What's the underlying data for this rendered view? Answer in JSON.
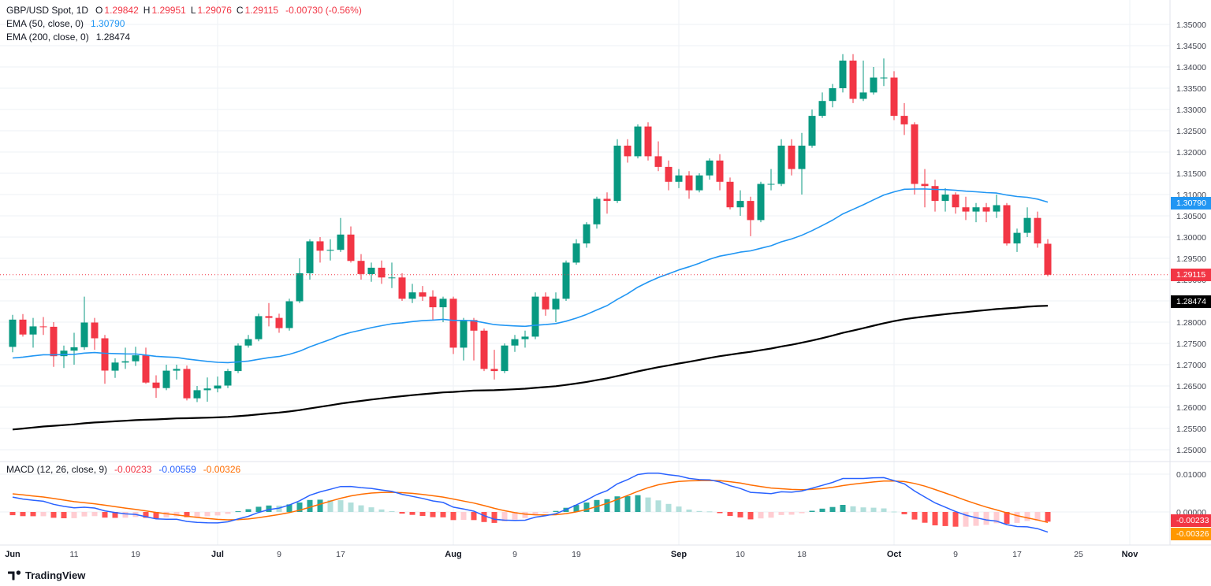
{
  "colors": {
    "up": "#089981",
    "down": "#f23645",
    "ema50": "#2196f3",
    "ema200": "#000000",
    "macd_line": "#2962ff",
    "signal_line": "#ff6d00",
    "hist_grow_above": "#26a69a",
    "hist_fall_above": "#b2dfdb",
    "hist_fall_below": "#ff5252",
    "hist_grow_below": "#ffcdd2",
    "grid": "#eef1f6",
    "divider": "#e0e3eb",
    "last_price": "#f23645",
    "hist_badge": "#f23645",
    "signal_badge": "#ff9800",
    "axis_text": "#434651"
  },
  "legend": {
    "symbol": "GBP/USD Spot, 1D",
    "open_label": "O",
    "open": "1.29842",
    "high_label": "H",
    "high": "1.29951",
    "low_label": "L",
    "low": "1.29076",
    "close_label": "C",
    "close": "1.29115",
    "change": "-0.00730 (-0.56%)",
    "ema50_label": "EMA (50, close, 0)",
    "ema50_value": "1.30790",
    "ema200_label": "EMA (200, close, 0)",
    "ema200_value": "1.28474",
    "macd_label": "MACD (12, 26, close, 9)",
    "macd_hist_value": "-0.00233",
    "macd_value": "-0.00559",
    "macd_signal_value": "-0.00326"
  },
  "badges": {
    "ema50": "1.30790",
    "ema200": "1.28474",
    "last": "1.29115",
    "macd_hist": "-0.00233",
    "macd_signal": "-0.00326"
  },
  "axes": {
    "price_ticks": [
      "1.35000",
      "1.34500",
      "1.34000",
      "1.33500",
      "1.33000",
      "1.32500",
      "1.32000",
      "1.31500",
      "1.31000",
      "1.30500",
      "1.30000",
      "1.29500",
      "1.29000",
      "1.28500",
      "1.28000",
      "1.27500",
      "1.27000",
      "1.26500",
      "1.26000",
      "1.25500",
      "1.25000"
    ],
    "macd_ticks": [
      "0.01000",
      "0.00000"
    ],
    "time_ticks": [
      {
        "label": "Jun",
        "i": 0,
        "major": true
      },
      {
        "label": "11",
        "i": 6
      },
      {
        "label": "19",
        "i": 12
      },
      {
        "label": "Jul",
        "i": 20,
        "major": true
      },
      {
        "label": "9",
        "i": 26
      },
      {
        "label": "17",
        "i": 32
      },
      {
        "label": "Aug",
        "i": 43,
        "major": true
      },
      {
        "label": "9",
        "i": 49
      },
      {
        "label": "19",
        "i": 55
      },
      {
        "label": "Sep",
        "i": 65,
        "major": true
      },
      {
        "label": "10",
        "i": 71
      },
      {
        "label": "18",
        "i": 77
      },
      {
        "label": "Oct",
        "i": 86,
        "major": true
      },
      {
        "label": "9",
        "i": 92
      },
      {
        "label": "17",
        "i": 98
      },
      {
        "label": "25",
        "i": 104
      },
      {
        "label": "Nov",
        "i": 109,
        "major": true
      }
    ]
  },
  "watermark": "TradingView",
  "chart_data": {
    "type": "candlestick",
    "title": "GBP/USD Spot, 1D",
    "symbol": "GBP/USD Spot",
    "timeframe": "1D",
    "price_axis": {
      "min": 1.25,
      "max": 1.35,
      "tick": 0.005
    },
    "last_price": 1.29115,
    "candles": [
      [
        "Jun 3",
        1.2742,
        1.2817,
        1.2729,
        1.2806
      ],
      [
        "Jun 4",
        1.2806,
        1.2819,
        1.2766,
        1.2771
      ],
      [
        "Jun 5",
        1.2771,
        1.281,
        1.274,
        1.279
      ],
      [
        "Jun 6",
        1.279,
        1.2812,
        1.277,
        1.2789
      ],
      [
        "Jun 7",
        1.2789,
        1.28,
        1.2695,
        1.272
      ],
      [
        "Jun 10",
        1.272,
        1.2745,
        1.2692,
        1.2733
      ],
      [
        "Jun 11",
        1.2733,
        1.2775,
        1.27,
        1.2741
      ],
      [
        "Jun 12",
        1.2741,
        1.286,
        1.2735,
        1.2799
      ],
      [
        "Jun 13",
        1.2799,
        1.281,
        1.2735,
        1.2762
      ],
      [
        "Jun 14",
        1.2762,
        1.277,
        1.2655,
        1.2686
      ],
      [
        "Jun 17",
        1.2686,
        1.2715,
        1.2669,
        1.2705
      ],
      [
        "Jun 18",
        1.2705,
        1.274,
        1.269,
        1.2708
      ],
      [
        "Jun 19",
        1.2708,
        1.2742,
        1.2697,
        1.2722
      ],
      [
        "Jun 20",
        1.2722,
        1.274,
        1.2655,
        1.2658
      ],
      [
        "Jun 21",
        1.2658,
        1.2675,
        1.2622,
        1.2645
      ],
      [
        "Jun 24",
        1.2645,
        1.27,
        1.264,
        1.2686
      ],
      [
        "Jun 25",
        1.2686,
        1.27,
        1.2665,
        1.269
      ],
      [
        "Jun 26",
        1.269,
        1.2698,
        1.2616,
        1.2621
      ],
      [
        "Jun 27",
        1.2621,
        1.265,
        1.2612,
        1.264
      ],
      [
        "Jun 28",
        1.264,
        1.267,
        1.2613,
        1.2644
      ],
      [
        "Jul 1",
        1.2644,
        1.2672,
        1.2635,
        1.2651
      ],
      [
        "Jul 2",
        1.2651,
        1.269,
        1.2645,
        1.2685
      ],
      [
        "Jul 3",
        1.2685,
        1.275,
        1.268,
        1.2745
      ],
      [
        "Jul 4",
        1.2745,
        1.277,
        1.274,
        1.276
      ],
      [
        "Jul 5",
        1.276,
        1.282,
        1.2755,
        1.2814
      ],
      [
        "Jul 8",
        1.2814,
        1.2845,
        1.279,
        1.281
      ],
      [
        "Jul 9",
        1.281,
        1.282,
        1.2775,
        1.2786
      ],
      [
        "Jul 10",
        1.2786,
        1.2855,
        1.278,
        1.2849
      ],
      [
        "Jul 11",
        1.2849,
        1.295,
        1.2845,
        1.2915
      ],
      [
        "Jul 12",
        1.2915,
        1.2995,
        1.29,
        1.299
      ],
      [
        "Jul 15",
        1.299,
        1.3,
        1.294,
        1.2968
      ],
      [
        "Jul 16",
        1.2968,
        1.2995,
        1.2945,
        1.297
      ],
      [
        "Jul 17",
        1.297,
        1.3045,
        1.2965,
        1.3006
      ],
      [
        "Jul 18",
        1.3006,
        1.3025,
        1.294,
        1.2944
      ],
      [
        "Jul 19",
        1.2944,
        1.296,
        1.29,
        1.2913
      ],
      [
        "Jul 22",
        1.2913,
        1.294,
        1.2895,
        1.2928
      ],
      [
        "Jul 23",
        1.2928,
        1.2945,
        1.289,
        1.2905
      ],
      [
        "Jul 24",
        1.2905,
        1.294,
        1.288,
        1.2905
      ],
      [
        "Jul 25",
        1.2905,
        1.2915,
        1.285,
        1.2855
      ],
      [
        "Jul 26",
        1.2855,
        1.289,
        1.2845,
        1.287
      ],
      [
        "Jul 29",
        1.287,
        1.2885,
        1.285,
        1.286
      ],
      [
        "Jul 30",
        1.286,
        1.2875,
        1.2805,
        1.2835
      ],
      [
        "Jul 31",
        1.2835,
        1.286,
        1.28,
        1.2855
      ],
      [
        "Aug 1",
        1.2855,
        1.286,
        1.2725,
        1.274
      ],
      [
        "Aug 2",
        1.274,
        1.281,
        1.271,
        1.2805
      ],
      [
        "Aug 5",
        1.2805,
        1.281,
        1.271,
        1.278
      ],
      [
        "Aug 6",
        1.278,
        1.2785,
        1.2685,
        1.269
      ],
      [
        "Aug 7",
        1.269,
        1.2735,
        1.2665,
        1.2685
      ],
      [
        "Aug 8",
        1.2685,
        1.275,
        1.268,
        1.2745
      ],
      [
        "Aug 9",
        1.2745,
        1.277,
        1.273,
        1.276
      ],
      [
        "Aug 12",
        1.276,
        1.278,
        1.274,
        1.2766
      ],
      [
        "Aug 13",
        1.2766,
        1.287,
        1.276,
        1.286
      ],
      [
        "Aug 14",
        1.286,
        1.287,
        1.2815,
        1.283
      ],
      [
        "Aug 15",
        1.283,
        1.287,
        1.28,
        1.2855
      ],
      [
        "Aug 16",
        1.2855,
        1.2945,
        1.285,
        1.294
      ],
      [
        "Aug 19",
        1.294,
        1.2995,
        1.2935,
        1.2985
      ],
      [
        "Aug 20",
        1.2985,
        1.3035,
        1.2975,
        1.303
      ],
      [
        "Aug 21",
        1.303,
        1.3095,
        1.302,
        1.309
      ],
      [
        "Aug 22",
        1.309,
        1.3105,
        1.3055,
        1.3085
      ],
      [
        "Aug 23",
        1.3085,
        1.323,
        1.308,
        1.3215
      ],
      [
        "Aug 26",
        1.3215,
        1.323,
        1.3175,
        1.319
      ],
      [
        "Aug 27",
        1.319,
        1.3265,
        1.3185,
        1.326
      ],
      [
        "Aug 28",
        1.326,
        1.327,
        1.318,
        1.319
      ],
      [
        "Aug 29",
        1.319,
        1.3225,
        1.3155,
        1.3165
      ],
      [
        "Aug 30",
        1.3165,
        1.318,
        1.311,
        1.313
      ],
      [
        "Sep 2",
        1.313,
        1.316,
        1.3115,
        1.3145
      ],
      [
        "Sep 3",
        1.3145,
        1.3155,
        1.309,
        1.311
      ],
      [
        "Sep 4",
        1.311,
        1.315,
        1.3105,
        1.3145
      ],
      [
        "Sep 5",
        1.3145,
        1.3185,
        1.3135,
        1.318
      ],
      [
        "Sep 6",
        1.318,
        1.3195,
        1.311,
        1.313
      ],
      [
        "Sep 9",
        1.313,
        1.314,
        1.3065,
        1.307
      ],
      [
        "Sep 10",
        1.307,
        1.311,
        1.305,
        1.3085
      ],
      [
        "Sep 11",
        1.3085,
        1.3095,
        1.3002,
        1.304
      ],
      [
        "Sep 12",
        1.304,
        1.313,
        1.3035,
        1.3125
      ],
      [
        "Sep 13",
        1.3125,
        1.316,
        1.311,
        1.3125
      ],
      [
        "Sep 16",
        1.3125,
        1.323,
        1.312,
        1.3215
      ],
      [
        "Sep 17",
        1.3215,
        1.323,
        1.3145,
        1.316
      ],
      [
        "Sep 18",
        1.316,
        1.3245,
        1.31,
        1.3215
      ],
      [
        "Sep 19",
        1.3215,
        1.33,
        1.321,
        1.3285
      ],
      [
        "Sep 20",
        1.3285,
        1.334,
        1.328,
        1.332
      ],
      [
        "Sep 23",
        1.332,
        1.336,
        1.3305,
        1.335
      ],
      [
        "Sep 24",
        1.335,
        1.343,
        1.334,
        1.3415
      ],
      [
        "Sep 25",
        1.3415,
        1.343,
        1.3315,
        1.3325
      ],
      [
        "Sep 26",
        1.3325,
        1.3415,
        1.332,
        1.334
      ],
      [
        "Sep 27",
        1.334,
        1.34,
        1.3335,
        1.3375
      ],
      [
        "Sep 30",
        1.3375,
        1.342,
        1.3355,
        1.3375
      ],
      [
        "Oct 1",
        1.3375,
        1.339,
        1.3275,
        1.3285
      ],
      [
        "Oct 2",
        1.3285,
        1.3315,
        1.324,
        1.3265
      ],
      [
        "Oct 3",
        1.3265,
        1.327,
        1.31,
        1.3125
      ],
      [
        "Oct 4",
        1.3125,
        1.316,
        1.307,
        1.312
      ],
      [
        "Oct 7",
        1.312,
        1.3135,
        1.306,
        1.3085
      ],
      [
        "Oct 8",
        1.3085,
        1.3115,
        1.306,
        1.31
      ],
      [
        "Oct 9",
        1.31,
        1.3105,
        1.3055,
        1.307
      ],
      [
        "Oct 10",
        1.307,
        1.3095,
        1.304,
        1.306
      ],
      [
        "Oct 11",
        1.306,
        1.308,
        1.3035,
        1.307
      ],
      [
        "Oct 14",
        1.307,
        1.308,
        1.3035,
        1.306
      ],
      [
        "Oct 15",
        1.306,
        1.31,
        1.3045,
        1.3075
      ],
      [
        "Oct 16",
        1.3075,
        1.308,
        1.298,
        1.2985
      ],
      [
        "Oct 17",
        1.2985,
        1.302,
        1.2965,
        1.301
      ],
      [
        "Oct 18",
        1.301,
        1.307,
        1.3,
        1.3045
      ],
      [
        "Oct 21",
        1.3045,
        1.306,
        1.2975,
        1.2985
      ],
      [
        "Oct 22",
        1.29842,
        1.29951,
        1.29076,
        1.29115
      ]
    ],
    "overlays": [
      {
        "name": "EMA 50",
        "period": 50,
        "seed": 1.2712,
        "color": "#2196f3",
        "width": 1.6,
        "value": 1.3079
      },
      {
        "name": "EMA 200",
        "period": 200,
        "seed": 1.2545,
        "color": "#000000",
        "width": 2.2,
        "value": 1.28474
      }
    ],
    "macd": {
      "fast": 12,
      "slow": 26,
      "signal": 9,
      "seed_fast": 1.28,
      "seed_slow": 1.2758,
      "seed_signal": 0.005,
      "hist_value": -0.00233,
      "macd_value": -0.00559,
      "signal_value": -0.00326
    }
  }
}
